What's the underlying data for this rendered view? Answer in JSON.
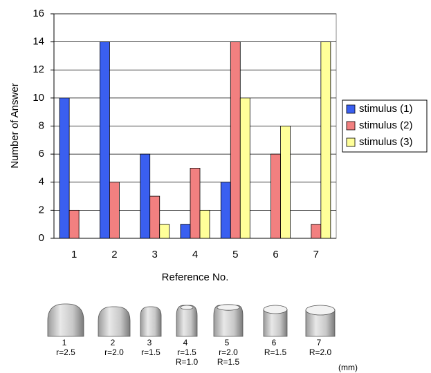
{
  "chart_data": {
    "type": "bar",
    "x_label": "Reference No.",
    "y_label": "Number of Answer",
    "categories": [
      "1",
      "2",
      "3",
      "4",
      "5",
      "6",
      "7"
    ],
    "series": [
      {
        "name": "stimulus (1)",
        "color": "#3a5ff0",
        "values": [
          10,
          14,
          6,
          1,
          4,
          0,
          0
        ]
      },
      {
        "name": "stimulus (2)",
        "color": "#f28080",
        "values": [
          2,
          4,
          3,
          5,
          14,
          6,
          1
        ]
      },
      {
        "name": "stimulus (3)",
        "color": "#ffff99",
        "values": [
          0,
          0,
          1,
          2,
          10,
          8,
          14
        ]
      }
    ],
    "ylim": [
      0,
      16
    ],
    "yticks": [
      0,
      2,
      4,
      6,
      8,
      10,
      12,
      14,
      16
    ],
    "grid": true,
    "legend": "right"
  },
  "figure_legend": {
    "shapes": [
      {
        "label": "1",
        "lines": [
          "r=2.5"
        ]
      },
      {
        "label": "2",
        "lines": [
          "r=2.0"
        ]
      },
      {
        "label": "3",
        "lines": [
          "r=1.5"
        ]
      },
      {
        "label": "4",
        "lines": [
          "r=1.5",
          "R=1.0"
        ]
      },
      {
        "label": "5",
        "lines": [
          "r=2.0",
          "R=1.5"
        ]
      },
      {
        "label": "6",
        "lines": [
          "R=1.5"
        ]
      },
      {
        "label": "7",
        "lines": [
          "R=2.0"
        ]
      }
    ],
    "unit": "(mm)"
  }
}
